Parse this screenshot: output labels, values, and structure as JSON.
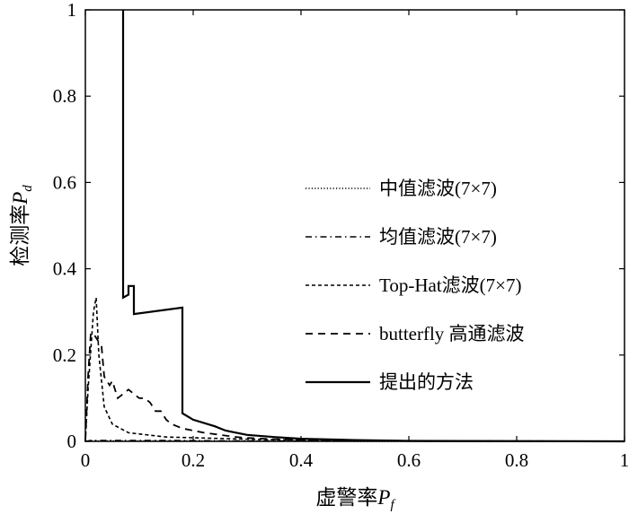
{
  "chart_data": {
    "type": "line",
    "xlabel": {
      "text": "虚警率",
      "var": "P",
      "sub": "f"
    },
    "ylabel": {
      "text": "检测率",
      "var": "P",
      "sub": "d"
    },
    "xlim": [
      0,
      1
    ],
    "ylim": [
      0,
      1
    ],
    "xticks": [
      "0",
      "0.2",
      "0.4",
      "0.6",
      "0.8",
      "1"
    ],
    "yticks": [
      "0",
      "0.2",
      "0.4",
      "0.6",
      "0.8",
      "1"
    ],
    "grid": false,
    "legend_position": "center-right",
    "series": [
      {
        "name": "中值滤波(7×7)",
        "style": "dotted",
        "x": [
          0,
          0.01,
          0.05,
          0.15,
          0.3,
          0.5,
          0.7,
          1.0
        ],
        "y": [
          0,
          0.001,
          0.001,
          0.001,
          0.001,
          0.0,
          0.0,
          0.0
        ]
      },
      {
        "name": "均值滤波(7×7)",
        "style": "dashdot",
        "x": [
          0,
          0.01,
          0.05,
          0.15,
          0.3,
          0.5,
          0.7,
          1.0
        ],
        "y": [
          0,
          0.002,
          0.002,
          0.002,
          0.001,
          0.001,
          0.0,
          0.0
        ]
      },
      {
        "name": "Top-Hat滤波(7×7)",
        "style": "dashed-fine",
        "x": [
          0,
          0.005,
          0.015,
          0.02,
          0.025,
          0.035,
          0.05,
          0.08,
          0.15,
          0.3,
          0.5,
          1.0
        ],
        "y": [
          0,
          0.12,
          0.3,
          0.333,
          0.2,
          0.08,
          0.04,
          0.02,
          0.01,
          0.005,
          0.001,
          0.0
        ]
      },
      {
        "name": "butterfly 高通滤波",
        "style": "dashed",
        "x": [
          0,
          0.005,
          0.01,
          0.015,
          0.02,
          0.025,
          0.03,
          0.035,
          0.04,
          0.045,
          0.05,
          0.055,
          0.06,
          0.07,
          0.08,
          0.09,
          0.1,
          0.11,
          0.12,
          0.13,
          0.14,
          0.15,
          0.16,
          0.17,
          0.18,
          0.2,
          0.22,
          0.25,
          0.28,
          0.3,
          0.35,
          0.4,
          0.5,
          0.6,
          1.0
        ],
        "y": [
          0,
          0.15,
          0.25,
          0.25,
          0.24,
          0.23,
          0.22,
          0.15,
          0.14,
          0.13,
          0.14,
          0.12,
          0.1,
          0.11,
          0.12,
          0.11,
          0.1,
          0.1,
          0.09,
          0.07,
          0.07,
          0.05,
          0.04,
          0.035,
          0.03,
          0.025,
          0.02,
          0.015,
          0.01,
          0.008,
          0.005,
          0.004,
          0.002,
          0.001,
          0.0
        ]
      },
      {
        "name": "提出的方法",
        "style": "solid",
        "x": [
          0.07,
          0.07,
          0.08,
          0.08,
          0.09,
          0.09,
          0.18,
          0.18,
          0.2,
          0.24,
          0.26,
          0.3,
          0.35,
          0.4,
          0.5,
          0.6,
          1.0
        ],
        "y": [
          1.0,
          0.333,
          0.34,
          0.36,
          0.36,
          0.295,
          0.31,
          0.065,
          0.05,
          0.035,
          0.025,
          0.015,
          0.01,
          0.006,
          0.003,
          0.001,
          0.0
        ]
      }
    ]
  }
}
